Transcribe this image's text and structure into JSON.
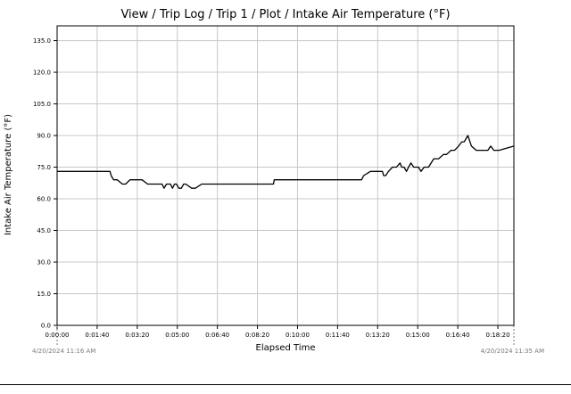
{
  "window": {
    "title": "View / Trip Log / Trip 1 / Plot / Intake Air Temperature (°F)"
  },
  "chart_data": {
    "type": "line",
    "title": "View / Trip Log / Trip 1 / Plot / Intake Air Temperature (°F)",
    "xlabel": "Elapsed Time",
    "ylabel": "Intake Air Temperature (°F)",
    "ylim": [
      0,
      142
    ],
    "xlim_seconds": [
      0,
      1140
    ],
    "grid": true,
    "y_ticks": [
      0,
      15,
      30,
      45,
      60,
      75,
      90,
      105,
      120,
      135
    ],
    "y_tick_labels": [
      "0.0",
      "15.0",
      "30.0",
      "45.0",
      "60.0",
      "75.0",
      "90.0",
      "105.0",
      "120.0",
      "135.0"
    ],
    "x_ticks_seconds": [
      0,
      100,
      200,
      300,
      400,
      500,
      600,
      700,
      800,
      900,
      1000,
      1100
    ],
    "x_tick_labels": [
      "0:00:00",
      "0:01:40",
      "0:03:20",
      "0:05:00",
      "0:06:40",
      "0:08:20",
      "0:10:00",
      "0:11:40",
      "0:13:20",
      "0:15:00",
      "0:16:40",
      "0:18:20"
    ],
    "start_timestamp": "4/20/2024 11:16 AM",
    "end_timestamp": "4/20/2024 11:35 AM",
    "series": [
      {
        "name": "Intake Air Temperature",
        "color": "#000000",
        "x": [
          0,
          132,
          135,
          141,
          150,
          163,
          171,
          182,
          189,
          212,
          226,
          262,
          267,
          273,
          283,
          288,
          293,
          298,
          304,
          310,
          316,
          321,
          336,
          345,
          361,
          540,
          542,
          760,
          765,
          782,
          812,
          815,
          820,
          827,
          837,
          847,
          856,
          860,
          866,
          872,
          877,
          883,
          890,
          896,
          902,
          908,
          916,
          927,
          940,
          952,
          964,
          972,
          983,
          992,
          1002,
          1010,
          1016,
          1025,
          1034,
          1046,
          1060,
          1075,
          1082,
          1090,
          1103,
          1140
        ],
        "values": [
          73,
          73,
          71,
          69,
          69,
          67,
          67,
          69,
          69,
          69,
          67,
          67,
          65,
          67,
          67,
          65,
          67,
          67,
          65,
          65,
          67,
          67,
          65,
          65,
          67,
          67,
          69,
          69,
          71,
          73,
          73,
          71,
          71,
          73,
          75,
          75,
          77,
          75,
          75,
          73,
          75,
          77,
          75,
          75,
          75,
          73,
          75,
          75,
          79,
          79,
          81,
          81,
          83,
          83,
          85,
          87,
          87,
          90,
          85,
          83,
          83,
          83,
          85,
          83,
          83,
          85
        ]
      }
    ]
  }
}
